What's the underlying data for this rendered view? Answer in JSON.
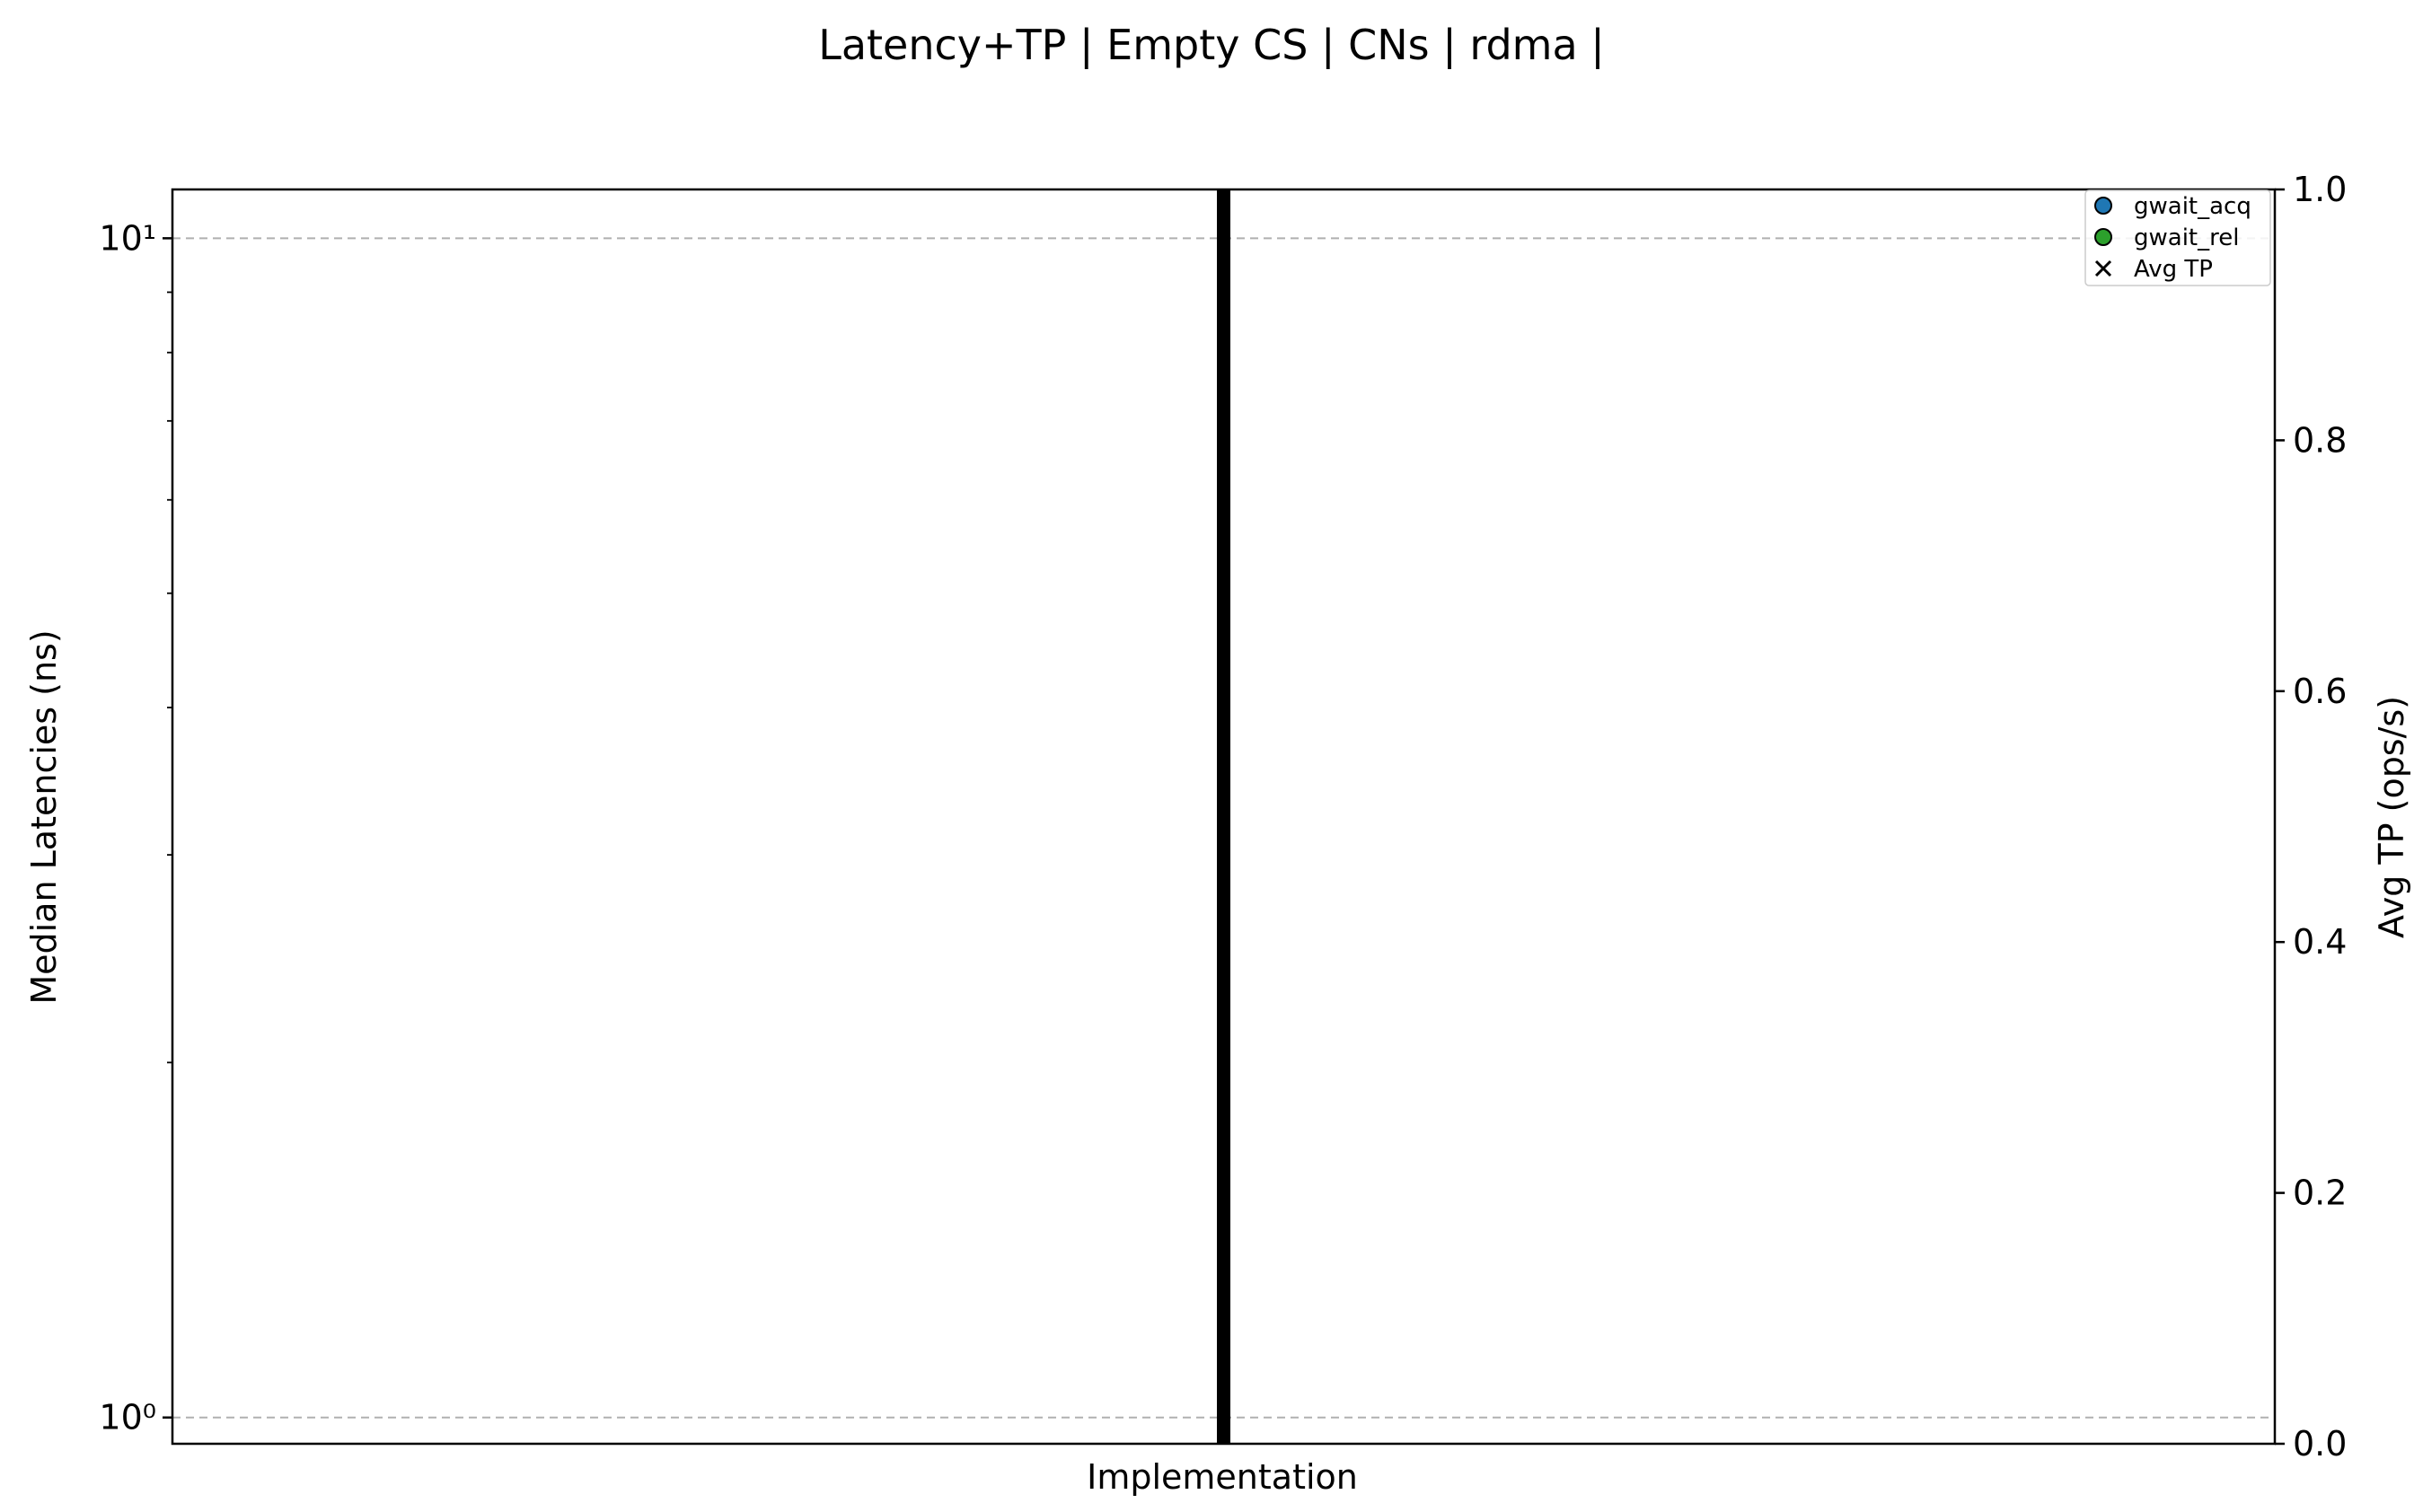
{
  "chart_data": {
    "type": "scatter",
    "title": "Latency+TP | Empty CS |  CNs | rdma |",
    "xlabel": "Implementation",
    "ylabel": "Median Latencies (ns)",
    "y2label": "Avg TP (ops/s)",
    "yscale": "log",
    "ylim": [
      0.95,
      11.0
    ],
    "y_ticks": [
      {
        "value": 1,
        "label": "10⁰"
      },
      {
        "value": 10,
        "label": "10¹"
      }
    ],
    "y2lim": [
      0.0,
      1.0
    ],
    "y2_ticks": [
      {
        "value": 0.0,
        "label": "0.0"
      },
      {
        "value": 0.2,
        "label": "0.2"
      },
      {
        "value": 0.4,
        "label": "0.4"
      },
      {
        "value": 0.6,
        "label": "0.6"
      },
      {
        "value": 0.8,
        "label": "0.8"
      },
      {
        "value": 1.0,
        "label": "1.0"
      }
    ],
    "grid": "horizontal dashed at major y ticks",
    "legend_position": "top-right",
    "series": [
      {
        "name": "gwait_acq",
        "marker": "circle",
        "color": "#1f77b4",
        "values": []
      },
      {
        "name": "gwait_rel",
        "marker": "circle",
        "color": "#2ca02c",
        "values": []
      },
      {
        "name": "Avg TP",
        "marker": "x",
        "color": "#000000",
        "values": []
      }
    ],
    "separator_color": "#000000"
  }
}
